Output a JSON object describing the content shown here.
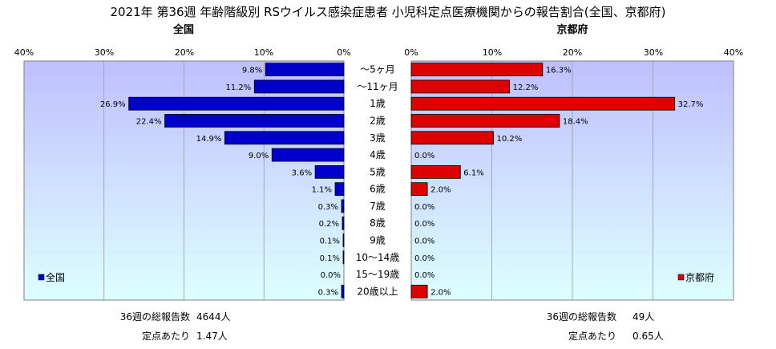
{
  "title": "2021年 第36週 年齢階級別 RSウイルス感染症患者 小児科定点医療機関からの報告割合(全国、京都府)",
  "left_panel": {
    "subtitle": "全国",
    "legend": "全国",
    "ticks": [
      "40%",
      "30%",
      "20%",
      "10%",
      "0%"
    ],
    "footer": [
      {
        "label": "36週の総報告数",
        "value": "4644人"
      },
      {
        "label": "定点あたり",
        "value": "1.47人"
      }
    ]
  },
  "right_panel": {
    "subtitle": "京都府",
    "legend": "京都府",
    "ticks": [
      "0%",
      "10%",
      "20%",
      "30%",
      "40%"
    ],
    "footer": [
      {
        "label": "36週の総報告数",
        "value": "49人"
      },
      {
        "label": "定点あたり",
        "value": "0.65人"
      }
    ]
  },
  "colors": {
    "national_bar": "#0000CC",
    "kyoto_bar": "#DD0000",
    "plot_bg_top": "#BFBFFF",
    "plot_bg_bottom": "#DDFFFF"
  },
  "chart_data": [
    {
      "type": "bar",
      "orientation": "horizontal",
      "direction": "right-to-left",
      "title": "全国",
      "xlim": [
        0,
        40
      ],
      "grid": true,
      "legend_position": "bottom-left",
      "categories": [
        "〜5ヶ月",
        "〜11ヶ月",
        "1歳",
        "2歳",
        "3歳",
        "4歳",
        "5歳",
        "6歳",
        "7歳",
        "8歳",
        "9歳",
        "10〜14歳",
        "15〜19歳",
        "20歳以上"
      ],
      "series": [
        {
          "name": "全国",
          "values": [
            9.8,
            11.2,
            26.9,
            22.4,
            14.9,
            9.0,
            3.6,
            1.1,
            0.3,
            0.2,
            0.1,
            0.1,
            0.0,
            0.3
          ],
          "labels": [
            "9.8%",
            "11.2%",
            "26.9%",
            "22.4%",
            "14.9%",
            "9.0%",
            "3.6%",
            "1.1%",
            "0.3%",
            "0.2%",
            "0.1%",
            "0.1%",
            "0.0%",
            "0.3%"
          ]
        }
      ]
    },
    {
      "type": "bar",
      "orientation": "horizontal",
      "direction": "left-to-right",
      "title": "京都府",
      "xlim": [
        0,
        40
      ],
      "grid": true,
      "legend_position": "bottom-right",
      "categories": [
        "〜5ヶ月",
        "〜11ヶ月",
        "1歳",
        "2歳",
        "3歳",
        "4歳",
        "5歳",
        "6歳",
        "7歳",
        "8歳",
        "9歳",
        "10〜14歳",
        "15〜19歳",
        "20歳以上"
      ],
      "series": [
        {
          "name": "京都府",
          "values": [
            16.3,
            12.2,
            32.7,
            18.4,
            10.2,
            0.0,
            6.1,
            2.0,
            0.0,
            0.0,
            0.0,
            0.0,
            0.0,
            2.0
          ],
          "labels": [
            "16.3%",
            "12.2%",
            "32.7%",
            "18.4%",
            "10.2%",
            "0.0%",
            "6.1%",
            "2.0%",
            "0.0%",
            "0.0%",
            "0.0%",
            "0.0%",
            "0.0%",
            "2.0%"
          ]
        }
      ]
    }
  ]
}
